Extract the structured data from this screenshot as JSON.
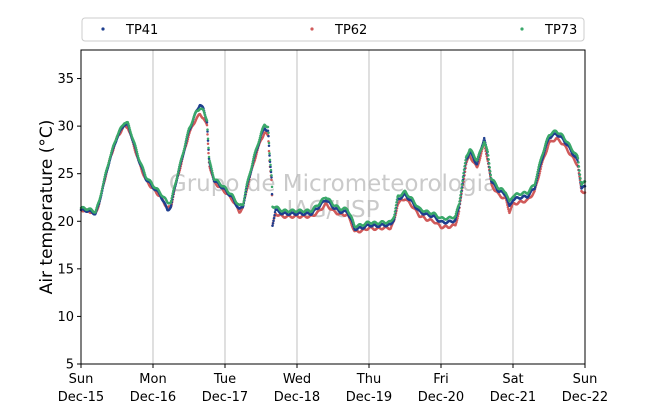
{
  "chart_data": {
    "type": "scatter",
    "ylabel": "Air temperature (°C)",
    "xlabel": "",
    "ylim": [
      5,
      38
    ],
    "yticks": [
      5,
      10,
      15,
      20,
      25,
      30,
      35
    ],
    "xlim": [
      0,
      7
    ],
    "xticks": [
      {
        "x": 0,
        "day": "Sun",
        "date": "Dec-15"
      },
      {
        "x": 1,
        "day": "Mon",
        "date": "Dec-16"
      },
      {
        "x": 2,
        "day": "Tue",
        "date": "Dec-17"
      },
      {
        "x": 3,
        "day": "Wed",
        "date": "Dec-18"
      },
      {
        "x": 4,
        "day": "Thu",
        "date": "Dec-19"
      },
      {
        "x": 5,
        "day": "Fri",
        "date": "Dec-20"
      },
      {
        "x": 6,
        "day": "Sat",
        "date": "Dec-21"
      },
      {
        "x": 7,
        "day": "Sun",
        "date": "Dec-22"
      }
    ],
    "grid": "vertical",
    "legend_position": "top",
    "watermark": [
      "Grupo de Micrometeorologia",
      "IAG/USP"
    ],
    "series": [
      {
        "name": "TP41",
        "color": "#1f3f8f",
        "offset": 0.0,
        "points": [
          [
            0,
            21.2
          ],
          [
            0.1,
            21.1
          ],
          [
            0.2,
            20.8
          ],
          [
            0.25,
            21.8
          ],
          [
            0.3,
            23.5
          ],
          [
            0.4,
            26.5
          ],
          [
            0.5,
            28.8
          ],
          [
            0.6,
            30.2
          ],
          [
            0.65,
            30.1
          ],
          [
            0.7,
            29.0
          ],
          [
            0.8,
            26.5
          ],
          [
            0.9,
            24.5
          ],
          [
            1.0,
            23.6
          ],
          [
            1.1,
            22.8
          ],
          [
            1.2,
            21.2
          ],
          [
            1.25,
            21.5
          ],
          [
            1.3,
            23.5
          ],
          [
            1.4,
            26.5
          ],
          [
            1.5,
            29.5
          ],
          [
            1.6,
            31.5
          ],
          [
            1.65,
            32.3
          ],
          [
            1.7,
            31.8
          ],
          [
            1.75,
            30.5
          ],
          [
            1.78,
            26.2
          ],
          [
            1.85,
            24.3
          ],
          [
            2.0,
            23.3
          ],
          [
            2.1,
            22.5
          ],
          [
            2.2,
            21.2
          ],
          [
            2.25,
            21.6
          ],
          [
            2.3,
            23.5
          ],
          [
            2.4,
            26.5
          ],
          [
            2.5,
            29.0
          ],
          [
            2.55,
            29.8
          ],
          [
            2.6,
            29.5
          ],
          [
            2.62,
            26.5
          ],
          [
            2.65,
            24.3
          ],
          [
            2.66,
            19.6
          ],
          [
            2.7,
            21.2
          ],
          [
            2.8,
            20.8
          ],
          [
            3.0,
            20.8
          ],
          [
            3.1,
            20.8
          ],
          [
            3.2,
            20.8
          ],
          [
            3.3,
            21.5
          ],
          [
            3.4,
            22.3
          ],
          [
            3.5,
            21.5
          ],
          [
            3.6,
            21.0
          ],
          [
            3.7,
            21.0
          ],
          [
            3.75,
            20.2
          ],
          [
            3.8,
            19.2
          ],
          [
            3.9,
            19.3
          ],
          [
            4.0,
            19.6
          ],
          [
            4.1,
            19.5
          ],
          [
            4.2,
            19.6
          ],
          [
            4.3,
            19.6
          ],
          [
            4.35,
            20.3
          ],
          [
            4.4,
            22.3
          ],
          [
            4.5,
            22.8
          ],
          [
            4.6,
            22.0
          ],
          [
            4.7,
            21.0
          ],
          [
            4.8,
            20.7
          ],
          [
            4.9,
            20.5
          ],
          [
            5.0,
            19.9
          ],
          [
            5.1,
            19.9
          ],
          [
            5.2,
            20.1
          ],
          [
            5.25,
            21.5
          ],
          [
            5.3,
            24.0
          ],
          [
            5.35,
            26.5
          ],
          [
            5.4,
            27.3
          ],
          [
            5.5,
            26.0
          ],
          [
            5.6,
            28.8
          ],
          [
            5.65,
            26.8
          ],
          [
            5.7,
            24.2
          ],
          [
            5.8,
            23.2
          ],
          [
            5.9,
            22.8
          ],
          [
            5.95,
            21.5
          ],
          [
            6.0,
            22.3
          ],
          [
            6.1,
            22.5
          ],
          [
            6.2,
            22.6
          ],
          [
            6.3,
            23.5
          ],
          [
            6.4,
            26.5
          ],
          [
            6.5,
            28.8
          ],
          [
            6.6,
            29.2
          ],
          [
            6.7,
            28.6
          ],
          [
            6.8,
            27.5
          ],
          [
            6.9,
            26.3
          ],
          [
            6.95,
            23.5
          ],
          [
            7.0,
            23.6
          ]
        ]
      },
      {
        "name": "TP62",
        "color": "#d05a5a",
        "offset": -0.35,
        "points": [
          [
            0,
            21.2
          ],
          [
            0.1,
            21.1
          ],
          [
            0.2,
            20.8
          ],
          [
            0.25,
            21.8
          ],
          [
            0.3,
            23.5
          ],
          [
            0.4,
            26.5
          ],
          [
            0.5,
            28.8
          ],
          [
            0.6,
            30.0
          ],
          [
            0.65,
            29.9
          ],
          [
            0.7,
            28.8
          ],
          [
            0.8,
            26.3
          ],
          [
            0.9,
            24.3
          ],
          [
            1.0,
            23.4
          ],
          [
            1.1,
            22.6
          ],
          [
            1.2,
            21.4
          ],
          [
            1.25,
            21.5
          ],
          [
            1.3,
            23.4
          ],
          [
            1.4,
            26.3
          ],
          [
            1.5,
            29.2
          ],
          [
            1.6,
            30.8
          ],
          [
            1.65,
            31.2
          ],
          [
            1.7,
            30.9
          ],
          [
            1.75,
            30.0
          ],
          [
            1.78,
            26.0
          ],
          [
            1.85,
            24.1
          ],
          [
            2.0,
            23.1
          ],
          [
            2.1,
            22.3
          ],
          [
            2.2,
            21.0
          ],
          [
            2.25,
            21.4
          ],
          [
            2.3,
            23.3
          ],
          [
            2.4,
            26.2
          ],
          [
            2.5,
            28.6
          ],
          [
            2.55,
            29.3
          ],
          [
            2.6,
            29.0
          ],
          [
            2.62,
            26.2
          ],
          [
            2.65,
            24.1
          ],
          [
            2.66,
            19.5
          ],
          [
            2.7,
            20.8
          ],
          [
            2.8,
            20.5
          ],
          [
            3.0,
            20.5
          ],
          [
            3.1,
            20.5
          ],
          [
            3.2,
            20.5
          ],
          [
            3.3,
            21.0
          ],
          [
            3.4,
            21.8
          ],
          [
            3.5,
            21.1
          ],
          [
            3.6,
            20.7
          ],
          [
            3.7,
            20.7
          ],
          [
            3.75,
            19.9
          ],
          [
            3.8,
            18.9
          ],
          [
            3.9,
            19.0
          ],
          [
            4.0,
            19.3
          ],
          [
            4.1,
            19.2
          ],
          [
            4.2,
            19.3
          ],
          [
            4.3,
            19.3
          ],
          [
            4.35,
            20.0
          ],
          [
            4.4,
            21.9
          ],
          [
            4.5,
            22.4
          ],
          [
            4.6,
            21.6
          ],
          [
            4.7,
            20.6
          ],
          [
            4.8,
            20.2
          ],
          [
            4.9,
            20.0
          ],
          [
            5.0,
            19.4
          ],
          [
            5.1,
            19.4
          ],
          [
            5.2,
            19.6
          ],
          [
            5.25,
            21.0
          ],
          [
            5.3,
            23.6
          ],
          [
            5.35,
            26.1
          ],
          [
            5.4,
            26.9
          ],
          [
            5.5,
            25.6
          ],
          [
            5.6,
            28.2
          ],
          [
            5.65,
            26.4
          ],
          [
            5.7,
            23.8
          ],
          [
            5.8,
            22.8
          ],
          [
            5.9,
            22.3
          ],
          [
            5.95,
            21.0
          ],
          [
            6.0,
            21.8
          ],
          [
            6.1,
            22.0
          ],
          [
            6.2,
            22.2
          ],
          [
            6.3,
            23.1
          ],
          [
            6.4,
            26.0
          ],
          [
            6.5,
            28.2
          ],
          [
            6.6,
            28.7
          ],
          [
            6.7,
            28.1
          ],
          [
            6.8,
            27.0
          ],
          [
            6.9,
            25.9
          ],
          [
            6.95,
            23.1
          ],
          [
            7.0,
            23.1
          ]
        ]
      },
      {
        "name": "TP73",
        "color": "#3aa86a",
        "offset": 0.35,
        "points": [
          [
            0,
            21.4
          ],
          [
            0.1,
            21.3
          ],
          [
            0.2,
            21.0
          ],
          [
            0.25,
            22.0
          ],
          [
            0.3,
            23.7
          ],
          [
            0.4,
            26.7
          ],
          [
            0.5,
            29.0
          ],
          [
            0.6,
            30.4
          ],
          [
            0.65,
            30.3
          ],
          [
            0.7,
            29.2
          ],
          [
            0.8,
            26.7
          ],
          [
            0.9,
            24.7
          ],
          [
            1.0,
            23.8
          ],
          [
            1.1,
            23.0
          ],
          [
            1.2,
            22.0
          ],
          [
            1.25,
            22.0
          ],
          [
            1.3,
            23.7
          ],
          [
            1.4,
            26.7
          ],
          [
            1.5,
            29.7
          ],
          [
            1.6,
            31.5
          ],
          [
            1.65,
            31.9
          ],
          [
            1.7,
            31.6
          ],
          [
            1.75,
            30.7
          ],
          [
            1.78,
            26.4
          ],
          [
            1.85,
            24.5
          ],
          [
            2.0,
            23.5
          ],
          [
            2.1,
            22.7
          ],
          [
            2.2,
            21.6
          ],
          [
            2.25,
            21.8
          ],
          [
            2.3,
            23.7
          ],
          [
            2.4,
            26.7
          ],
          [
            2.5,
            29.2
          ],
          [
            2.55,
            30.2
          ],
          [
            2.6,
            29.9
          ],
          [
            2.62,
            26.7
          ],
          [
            2.65,
            24.5
          ],
          [
            2.66,
            21.6
          ],
          [
            2.7,
            21.5
          ],
          [
            2.8,
            21.1
          ],
          [
            3.0,
            21.1
          ],
          [
            3.1,
            21.1
          ],
          [
            3.2,
            21.1
          ],
          [
            3.3,
            21.8
          ],
          [
            3.4,
            22.6
          ],
          [
            3.5,
            21.8
          ],
          [
            3.6,
            21.3
          ],
          [
            3.7,
            21.3
          ],
          [
            3.75,
            20.5
          ],
          [
            3.8,
            19.5
          ],
          [
            3.9,
            19.6
          ],
          [
            4.0,
            19.9
          ],
          [
            4.1,
            19.8
          ],
          [
            4.2,
            19.9
          ],
          [
            4.3,
            19.9
          ],
          [
            4.35,
            20.6
          ],
          [
            4.4,
            22.6
          ],
          [
            4.5,
            23.1
          ],
          [
            4.6,
            22.3
          ],
          [
            4.7,
            21.3
          ],
          [
            4.8,
            21.0
          ],
          [
            4.9,
            20.8
          ],
          [
            5.0,
            20.3
          ],
          [
            5.1,
            20.3
          ],
          [
            5.2,
            20.5
          ],
          [
            5.25,
            21.8
          ],
          [
            5.3,
            24.3
          ],
          [
            5.35,
            26.8
          ],
          [
            5.4,
            27.6
          ],
          [
            5.5,
            26.4
          ],
          [
            5.6,
            28.4
          ],
          [
            5.65,
            27.2
          ],
          [
            5.7,
            24.5
          ],
          [
            5.8,
            23.5
          ],
          [
            5.9,
            23.1
          ],
          [
            5.95,
            22.0
          ],
          [
            6.0,
            22.7
          ],
          [
            6.1,
            22.9
          ],
          [
            6.2,
            23.0
          ],
          [
            6.3,
            23.9
          ],
          [
            6.4,
            26.9
          ],
          [
            6.5,
            29.1
          ],
          [
            6.6,
            29.5
          ],
          [
            6.7,
            28.9
          ],
          [
            6.8,
            27.8
          ],
          [
            6.9,
            26.7
          ],
          [
            6.95,
            23.9
          ],
          [
            7.0,
            24.1
          ]
        ]
      }
    ]
  }
}
